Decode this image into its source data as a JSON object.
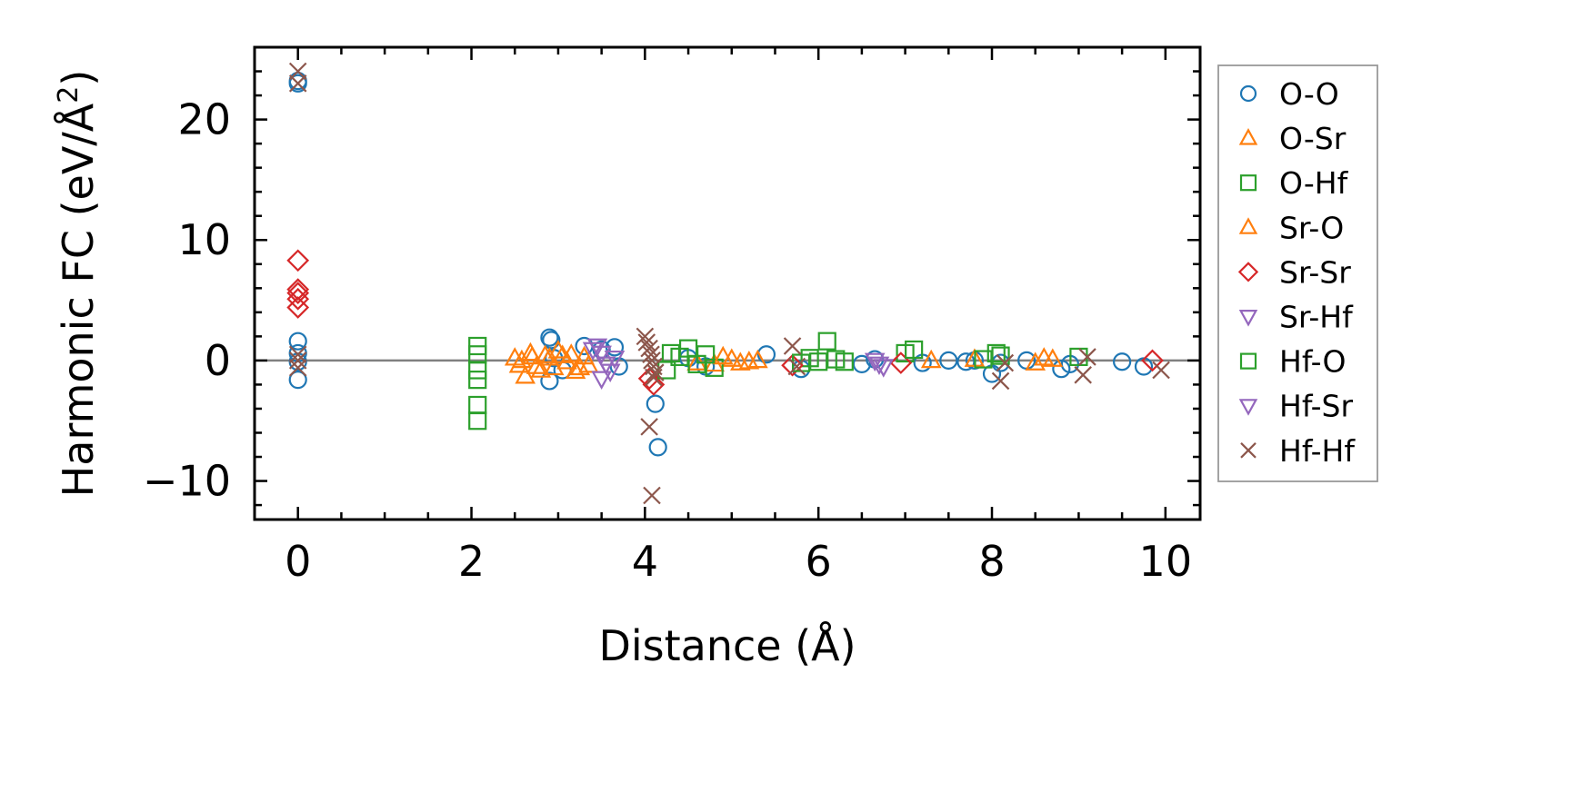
{
  "chart_data": {
    "type": "scatter",
    "title": "",
    "xlabel": "Distance (Å)",
    "ylabel_text": "Harmonic FC (eV/Å",
    "ylabel_sup": "2",
    "ylabel_close": ")",
    "xlim": [
      -0.5,
      10.4
    ],
    "ylim": [
      -13.2,
      26
    ],
    "xticks": [
      0,
      2,
      4,
      6,
      8,
      10
    ],
    "xtick_labels": [
      "0",
      "2",
      "4",
      "6",
      "8",
      "10"
    ],
    "yticks": [
      -10,
      0,
      10,
      20
    ],
    "ytick_labels": [
      "−10",
      "0",
      "10",
      "20"
    ],
    "grid": false,
    "zero_line": true,
    "legend_placement": "outside-right",
    "series": [
      {
        "name": "O-O",
        "marker": "circle",
        "color": "#1f77b4",
        "x": [
          0,
          0,
          0,
          0,
          0,
          0,
          2.9,
          2.92,
          2.95,
          2.9,
          3.05,
          3.3,
          3.5,
          3.65,
          3.7,
          4.12,
          4.15,
          4.5,
          4.7,
          5.4,
          5.8,
          6.5,
          6.65,
          7.2,
          7.5,
          7.7,
          7.8,
          8.0,
          8.1,
          8.4,
          8.8,
          8.9,
          9.5,
          9.75
        ],
        "y": [
          23.2,
          23.0,
          1.6,
          0.6,
          -0.1,
          -1.6,
          1.9,
          1.7,
          0.2,
          -1.7,
          -0.8,
          1.2,
          0.9,
          1.1,
          -0.5,
          -3.6,
          -7.2,
          0.2,
          -0.5,
          0.5,
          -0.7,
          -0.3,
          0.1,
          -0.2,
          0.0,
          -0.1,
          0.0,
          -1.1,
          -0.2,
          0.0,
          -0.7,
          -0.3,
          -0.1,
          -0.5
        ]
      },
      {
        "name": "O-Sr",
        "marker": "triangle-up",
        "color": "#ff7f0e",
        "x": [
          2.5,
          2.55,
          2.62,
          2.7,
          2.75,
          2.85,
          2.95,
          3.0,
          3.1,
          3.15,
          3.2,
          3.3,
          3.35,
          4.6,
          4.8,
          5.0,
          5.1,
          5.3,
          7.3,
          7.8,
          8.5,
          8.6,
          8.7
        ],
        "y": [
          0.2,
          -0.4,
          -1.3,
          0.3,
          -0.5,
          0.4,
          -0.6,
          0.8,
          -0.1,
          0.5,
          -0.9,
          0.3,
          -0.4,
          -0.2,
          -0.3,
          0.1,
          -0.2,
          0.0,
          0.0,
          0.1,
          -0.2,
          0.2,
          0.1
        ]
      },
      {
        "name": "O-Hf",
        "marker": "square",
        "color": "#2ca02c",
        "x": [
          2.07,
          2.07,
          2.07,
          2.07,
          2.07,
          2.07,
          4.3,
          4.5,
          4.8,
          5.9,
          6.1,
          6.3,
          7.0,
          8.1,
          9.0
        ],
        "y": [
          1.2,
          0.5,
          -0.8,
          -1.6,
          -3.7,
          -5.0,
          0.6,
          1.0,
          -0.6,
          0.2,
          1.6,
          -0.1,
          0.6,
          0.4,
          0.3
        ]
      },
      {
        "name": "Sr-O",
        "marker": "triangle-up",
        "color": "#ff7f0e",
        "x": [
          2.58,
          2.68,
          2.8,
          2.9,
          3.05,
          3.25,
          4.9,
          5.2
        ],
        "y": [
          0.0,
          0.6,
          -0.8,
          0.2,
          0.4,
          -0.6,
          0.3,
          -0.1
        ]
      },
      {
        "name": "Sr-Sr",
        "marker": "diamond",
        "color": "#d62728",
        "x": [
          0,
          0,
          0,
          0,
          0,
          4.05,
          4.1,
          5.7,
          6.95,
          9.85
        ],
        "y": [
          8.3,
          5.9,
          5.6,
          5.1,
          4.4,
          -1.5,
          -2.0,
          -0.4,
          -0.2,
          0.0
        ]
      },
      {
        "name": "Sr-Hf",
        "marker": "triangle-down",
        "color": "#9467bd",
        "x": [
          3.45,
          3.5,
          3.55,
          3.6,
          3.5,
          6.65,
          6.75
        ],
        "y": [
          1.2,
          0.6,
          -0.3,
          -0.9,
          -1.5,
          0.0,
          -0.5
        ]
      },
      {
        "name": "Hf-O",
        "marker": "square",
        "color": "#2ca02c",
        "x": [
          4.25,
          4.4,
          4.6,
          4.7,
          5.8,
          6.0,
          6.2,
          7.1,
          7.9,
          8.05
        ],
        "y": [
          -0.8,
          0.3,
          -0.3,
          0.5,
          -0.2,
          -0.1,
          0.1,
          0.9,
          0.1,
          0.6
        ]
      },
      {
        "name": "Hf-Sr",
        "marker": "triangle-down",
        "color": "#9467bd",
        "x": [
          3.4,
          3.65,
          6.7
        ],
        "y": [
          0.9,
          0.2,
          -0.3
        ]
      },
      {
        "name": "Hf-Hf",
        "marker": "x",
        "color": "#8c564b",
        "x": [
          0,
          0,
          0,
          0,
          0,
          4.0,
          4.02,
          4.05,
          4.07,
          4.08,
          4.1,
          4.12,
          4.1,
          4.05,
          4.08,
          5.7,
          5.75,
          8.1,
          8.15,
          9.05,
          9.1,
          9.95
        ],
        "y": [
          24.0,
          23.0,
          0.5,
          0.0,
          -0.6,
          2.0,
          1.5,
          1.0,
          0.5,
          0.0,
          -0.5,
          -1.0,
          -1.4,
          -5.5,
          -11.2,
          1.2,
          -0.5,
          -1.7,
          -0.2,
          -1.2,
          0.3,
          -0.8
        ]
      }
    ]
  }
}
